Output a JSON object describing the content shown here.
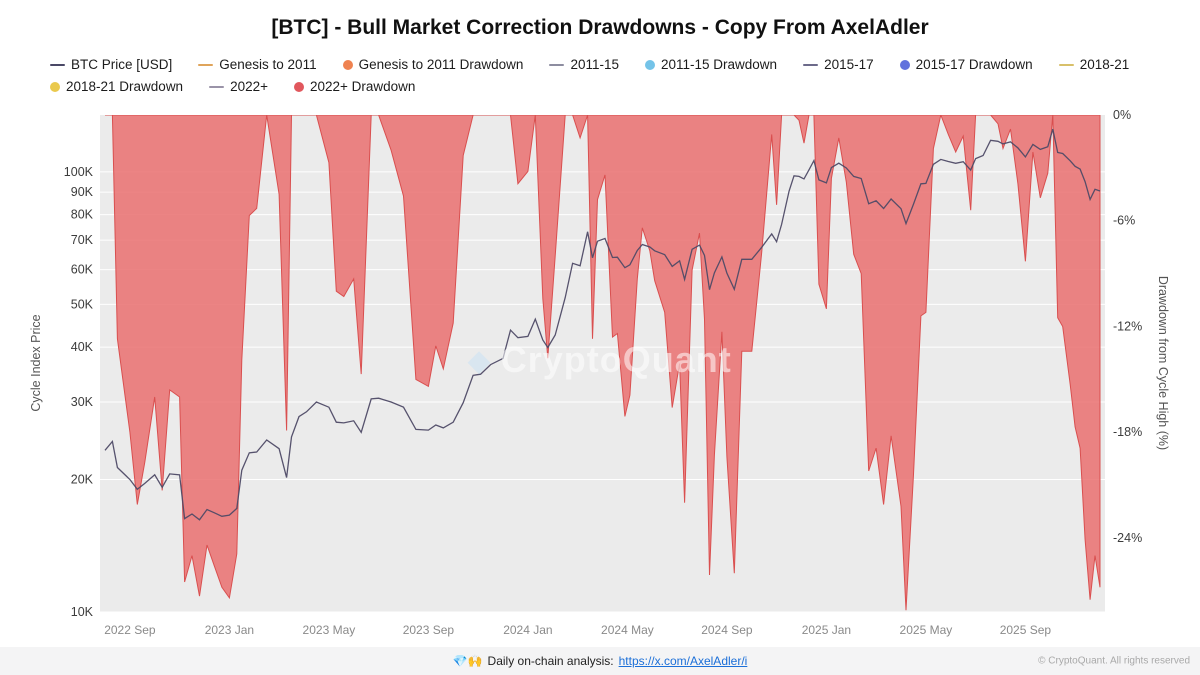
{
  "header": {
    "title": "[BTC] - Bull Market Correction Drawdowns - Copy From AxelAdler"
  },
  "legend": {
    "rows": [
      [
        {
          "label": "BTC Price [USD]",
          "marker": "line",
          "color": "#4a4866"
        },
        {
          "label": "Genesis to 2011",
          "marker": "line",
          "color": "#dfa45b"
        },
        {
          "label": "Genesis to 2011 Drawdown",
          "marker": "dot",
          "color": "#ef8250"
        },
        {
          "label": "2011-15",
          "marker": "line",
          "color": "#8d8da0"
        },
        {
          "label": "2011-15 Drawdown",
          "marker": "dot",
          "color": "#74c3e8"
        },
        {
          "label": "2015-17",
          "marker": "line",
          "color": "#6c6a8a"
        },
        {
          "label": "2015-17 Drawdown",
          "marker": "dot",
          "color": "#6272dd"
        },
        {
          "label": "2018-21",
          "marker": "line",
          "color": "#d8c06a"
        }
      ],
      [
        {
          "label": "2018-21 Drawdown",
          "marker": "dot",
          "color": "#eac94d"
        },
        {
          "label": "2022+",
          "marker": "line",
          "color": "#9a93a8"
        },
        {
          "label": "2022+ Drawdown",
          "marker": "dot",
          "color": "#e1575d"
        }
      ]
    ]
  },
  "watermark": {
    "text": "CryptoQuant"
  },
  "footer": {
    "icons": "💎🙌",
    "note": "Daily on-chain analysis:",
    "link": "https://x.com/AxelAdler/i",
    "copyright": "© CryptoQuant. All rights reserved"
  },
  "chart_data": {
    "type": "line+area",
    "title": "[BTC] - Bull Market Correction Drawdowns - Copy From AxelAdler",
    "x_unit": "months since 2022-08",
    "t_range": [
      -0.2,
      40.2
    ],
    "t": [
      0,
      0.3,
      0.5,
      1,
      1.3,
      1.6,
      2,
      2.3,
      2.6,
      3,
      3.2,
      3.5,
      3.8,
      4.1,
      4.4,
      4.7,
      5,
      5.3,
      5.5,
      5.8,
      6.1,
      6.5,
      7,
      7.3,
      7.5,
      7.8,
      8.1,
      8.5,
      9,
      9.3,
      9.6,
      10,
      10.3,
      10.7,
      11,
      11.5,
      12,
      12.5,
      13,
      13.3,
      13.6,
      14,
      14.4,
      14.8,
      15.1,
      15.5,
      16,
      16.3,
      16.6,
      17,
      17.3,
      17.6,
      17.8,
      18.1,
      18.5,
      18.8,
      19.1,
      19.4,
      19.6,
      19.8,
      20.1,
      20.4,
      20.6,
      20.9,
      21.1,
      21.4,
      21.6,
      21.9,
      22.1,
      22.5,
      22.8,
      23.1,
      23.3,
      23.6,
      23.9,
      24.1,
      24.3,
      24.5,
      24.8,
      25,
      25.3,
      25.6,
      26,
      26.4,
      26.8,
      27,
      27.2,
      27.5,
      27.7,
      27.9,
      28.1,
      28.3,
      28.5,
      28.7,
      29,
      29.2,
      29.5,
      29.8,
      30.1,
      30.4,
      30.7,
      31,
      31.3,
      31.6,
      32,
      32.2,
      32.5,
      32.8,
      33,
      33.3,
      33.6,
      33.9,
      34.2,
      34.5,
      34.8,
      35,
      35.3,
      35.6,
      35.9,
      36.1,
      36.4,
      36.7,
      37,
      37.3,
      37.6,
      37.9,
      38.1,
      38.3,
      38.5,
      38.8,
      39,
      39.2,
      39.4,
      39.6,
      39.8,
      40
    ],
    "series": [
      {
        "name": "BTC Price [USD]",
        "axis": "left",
        "type": "line",
        "color": "#4e4a66",
        "values_usd_k": [
          23.3,
          24.4,
          21.3,
          20.0,
          19.0,
          19.6,
          20.5,
          19.2,
          20.6,
          20.5,
          16.3,
          16.7,
          16.2,
          17.1,
          16.8,
          16.5,
          16.6,
          17.2,
          21.0,
          23.0,
          23.1,
          24.6,
          23.5,
          20.2,
          25.0,
          27.8,
          28.5,
          30.0,
          29.2,
          27.0,
          26.9,
          27.2,
          25.6,
          30.5,
          30.6,
          30.0,
          29.2,
          26.0,
          25.9,
          26.6,
          26.2,
          27.0,
          29.9,
          34.5,
          34.7,
          36.5,
          37.7,
          43.7,
          42.0,
          42.3,
          46.3,
          41.5,
          39.9,
          42.6,
          51.8,
          62.0,
          61.2,
          73.1,
          63.8,
          69.6,
          70.6,
          63.9,
          64.0,
          60.6,
          61.5,
          66.3,
          68.4,
          67.5,
          66.2,
          64.9,
          61.0,
          62.8,
          57.0,
          66.7,
          68.2,
          64.6,
          54.0,
          59.0,
          64.1,
          58.9,
          54.1,
          63.3,
          63.3,
          67.4,
          72.3,
          69.4,
          76.0,
          90.5,
          98.0,
          97.7,
          96.4,
          101.1,
          106.1,
          95.9,
          94.4,
          102.3,
          104.7,
          102.1,
          97.7,
          96.6,
          84.7,
          86.0,
          82.6,
          86.8,
          82.5,
          76.3,
          84.5,
          94.0,
          94.2,
          104.1,
          106.8,
          105.6,
          104.6,
          105.5,
          101.0,
          107.2,
          109.0,
          118.0,
          117.4,
          115.8,
          117.0,
          113.4,
          108.2,
          115.5,
          112.5,
          114.1,
          125.1,
          110.7,
          110.1,
          106.0,
          103.0,
          101.5,
          95.0,
          86.6,
          91.3,
          90.5
        ]
      },
      {
        "name": "2022+ Drawdown",
        "axis": "right",
        "type": "area",
        "color": "#e96a6a",
        "stroke": "#d94f4f",
        "values_pct": [
          0,
          0,
          -12.7,
          -18.0,
          -22.1,
          -19.7,
          -16.0,
          -21.3,
          -15.6,
          -16.0,
          -26.5,
          -25.0,
          -27.3,
          -24.4,
          -25.6,
          -26.8,
          -27.4,
          -24.9,
          -13.9,
          -5.7,
          -5.3,
          0,
          -4.5,
          -17.9,
          0,
          0,
          0,
          0,
          -2.7,
          -10.0,
          -10.3,
          -9.3,
          -14.7,
          0,
          0,
          -2.0,
          -4.6,
          -15.0,
          -15.4,
          -13.1,
          -14.4,
          -11.8,
          -2.3,
          0,
          0,
          0,
          0,
          0,
          -3.9,
          -3.2,
          0,
          -10.4,
          -13.8,
          -8.0,
          0,
          0,
          -1.3,
          0,
          -12.7,
          -4.8,
          -3.4,
          -12.6,
          -12.4,
          -17.1,
          -15.9,
          -9.3,
          -6.4,
          -7.7,
          -9.4,
          -11.2,
          -16.6,
          -14.1,
          -22.0,
          -8.8,
          -6.7,
          -11.6,
          -26.1,
          -19.3,
          -12.3,
          -19.4,
          -26.0,
          -13.4,
          -13.4,
          -7.8,
          -1.1,
          -5.1,
          0,
          0,
          0,
          -0.3,
          -1.6,
          0,
          0,
          -9.6,
          -11.0,
          -3.6,
          -1.3,
          -3.8,
          -7.9,
          -9.0,
          -20.2,
          -18.9,
          -22.1,
          -18.2,
          -22.2,
          -28.1,
          -20.4,
          -11.4,
          -11.2,
          -1.9,
          0,
          -1.1,
          -2.1,
          -1.2,
          -5.4,
          0,
          0,
          0,
          -0.5,
          -1.9,
          -0.8,
          -3.9,
          -8.3,
          -2.1,
          -4.7,
          -3.3,
          0,
          -11.5,
          -12.0,
          -15.3,
          -17.7,
          -18.9,
          -24.1,
          -27.5,
          -25.0,
          -26.8
        ]
      }
    ],
    "x_ticks": [
      {
        "t": 1,
        "label": "2022 Sep"
      },
      {
        "t": 5,
        "label": "2023 Jan"
      },
      {
        "t": 9,
        "label": "2023 May"
      },
      {
        "t": 13,
        "label": "2023 Sep"
      },
      {
        "t": 17,
        "label": "2024 Jan"
      },
      {
        "t": 21,
        "label": "2024 May"
      },
      {
        "t": 25,
        "label": "2024 Sep"
      },
      {
        "t": 29,
        "label": "2025 Jan"
      },
      {
        "t": 33,
        "label": "2025 May"
      },
      {
        "t": 37,
        "label": "2025 Sep"
      }
    ],
    "left_axis": {
      "label": "Cycle Index Price",
      "scale": "log",
      "range_k": [
        10,
        134.7
      ],
      "ticks": [
        {
          "v": 100,
          "label": "100K"
        },
        {
          "v": 90,
          "label": "90K"
        },
        {
          "v": 80,
          "label": "80K"
        },
        {
          "v": 70,
          "label": "70K"
        },
        {
          "v": 60,
          "label": "60K"
        },
        {
          "v": 50,
          "label": "50K"
        },
        {
          "v": 40,
          "label": "40K"
        },
        {
          "v": 30,
          "label": "30K"
        },
        {
          "v": 20,
          "label": "20K"
        },
        {
          "v": 10,
          "label": "10K"
        }
      ]
    },
    "right_axis": {
      "label": "Drawdown from Cycle High (%)",
      "scale": "linear",
      "range_pct": [
        -28.2,
        0
      ],
      "ticks": [
        {
          "v": 0,
          "label": "0%"
        },
        {
          "v": -6,
          "label": "-6%"
        },
        {
          "v": -12,
          "label": "-12%"
        },
        {
          "v": -18,
          "label": "-18%"
        },
        {
          "v": -24,
          "label": "-24%"
        }
      ]
    },
    "plot_bg": "#ebebeb",
    "grid_color": "#ffffff"
  }
}
